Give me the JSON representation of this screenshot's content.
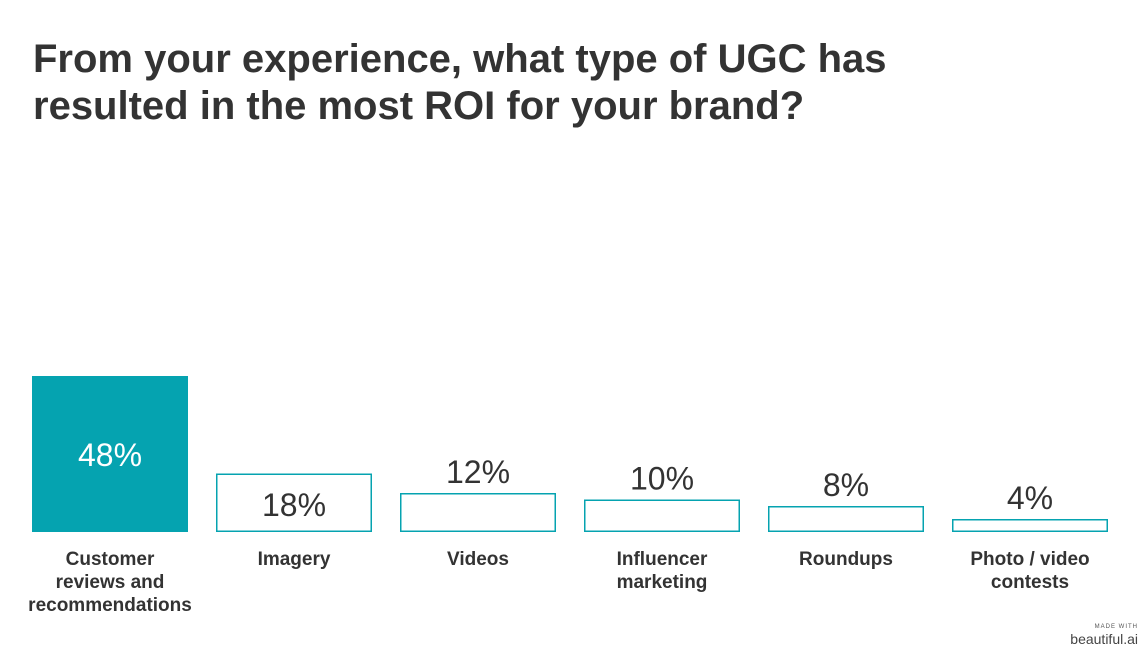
{
  "title": "From your experience, what type of UGC has resulted in the most ROI for your brand?",
  "colors": {
    "accent": "#05a3b0",
    "outline": "#05a3b0",
    "text": "#333333",
    "value_on_fill": "#ffffff"
  },
  "watermark": {
    "made_with": "MADE WITH",
    "brand": "beautiful.ai"
  },
  "chart_data": {
    "type": "bar",
    "title": "From your experience, what type of UGC has resulted in the most ROI for your brand?",
    "categories": [
      "Customer reviews and recommendations",
      "Imagery",
      "Videos",
      "Influencer marketing",
      "Roundups",
      "Photo / video contests"
    ],
    "category_lines": [
      [
        "Customer",
        "reviews and",
        "recommendations"
      ],
      [
        "Imagery"
      ],
      [
        "Videos"
      ],
      [
        "Influencer",
        "marketing"
      ],
      [
        "Roundups"
      ],
      [
        "Photo / video",
        "contests"
      ]
    ],
    "values": [
      48,
      18,
      12,
      10,
      8,
      4
    ],
    "value_labels": [
      "48%",
      "18%",
      "12%",
      "10%",
      "8%",
      "4%"
    ],
    "highlighted": [
      true,
      false,
      false,
      false,
      false,
      false
    ],
    "ylim": [
      0,
      48
    ],
    "grid": false,
    "legend": "none",
    "xlabel": "",
    "ylabel": ""
  }
}
